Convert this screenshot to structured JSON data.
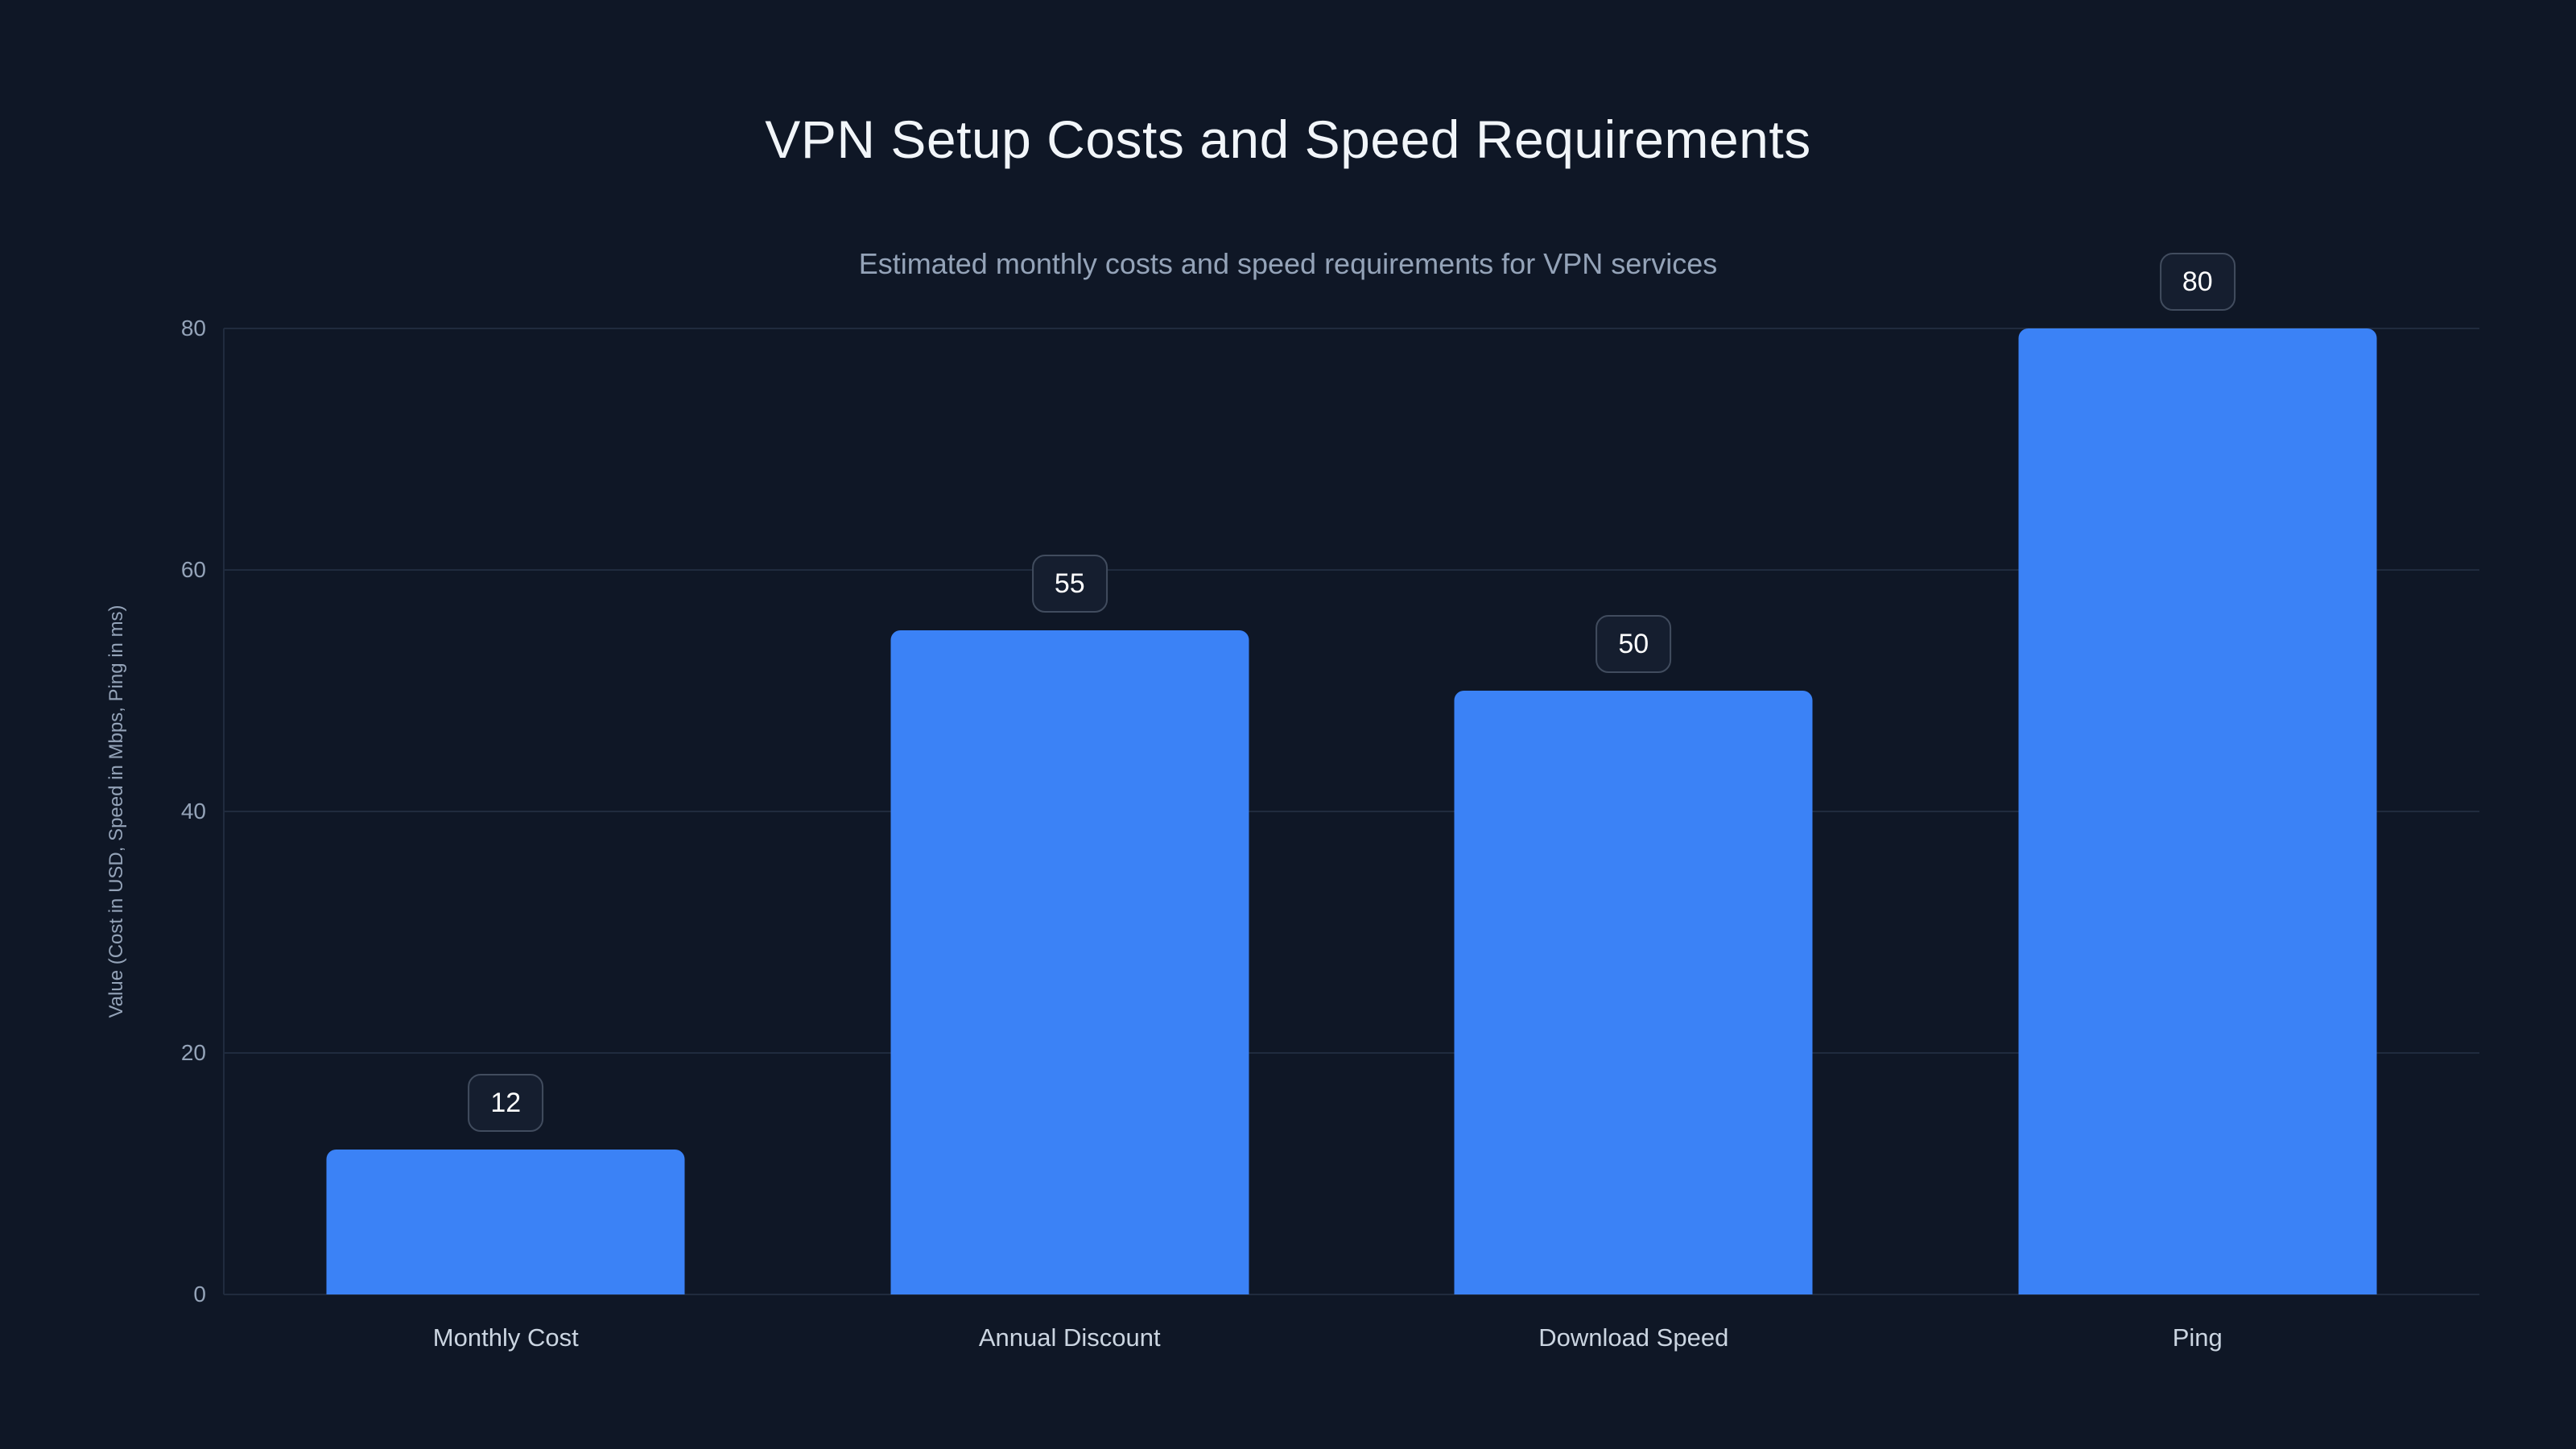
{
  "page": {
    "background": "#0f1726"
  },
  "chart_data": {
    "type": "bar",
    "title": "VPN Setup Costs and Speed Requirements",
    "subtitle": "Estimated monthly costs and speed requirements for VPN services",
    "ylabel": "Value (Cost in USD, Speed in Mbps, Ping in ms)",
    "xlabel": "",
    "categories": [
      "Monthly Cost",
      "Annual Discount",
      "Download Speed",
      "Ping"
    ],
    "values": [
      12,
      55,
      50,
      80
    ],
    "value_labels": [
      "12",
      "55",
      "50",
      "80"
    ],
    "yticks": [
      0,
      20,
      40,
      60,
      80
    ],
    "ytick_labels": [
      "0",
      "20",
      "40",
      "60",
      "80"
    ],
    "ylim": [
      0,
      80
    ],
    "grid": "horizontal",
    "legend": "none",
    "bar_style": "rounded-top",
    "annotations": "value badges above each bar",
    "colors": {
      "bar": "#3b82f6",
      "background": "#0f1726",
      "gridline": "#202b3e",
      "tick_label": "#94a3b8",
      "category_label": "#cbd5e1",
      "title": "#f1f5f9",
      "subtitle": "#94a3b8",
      "badge_border": "#414c5e",
      "badge_bg": "#151e2f",
      "badge_text": "#ffffff"
    }
  }
}
